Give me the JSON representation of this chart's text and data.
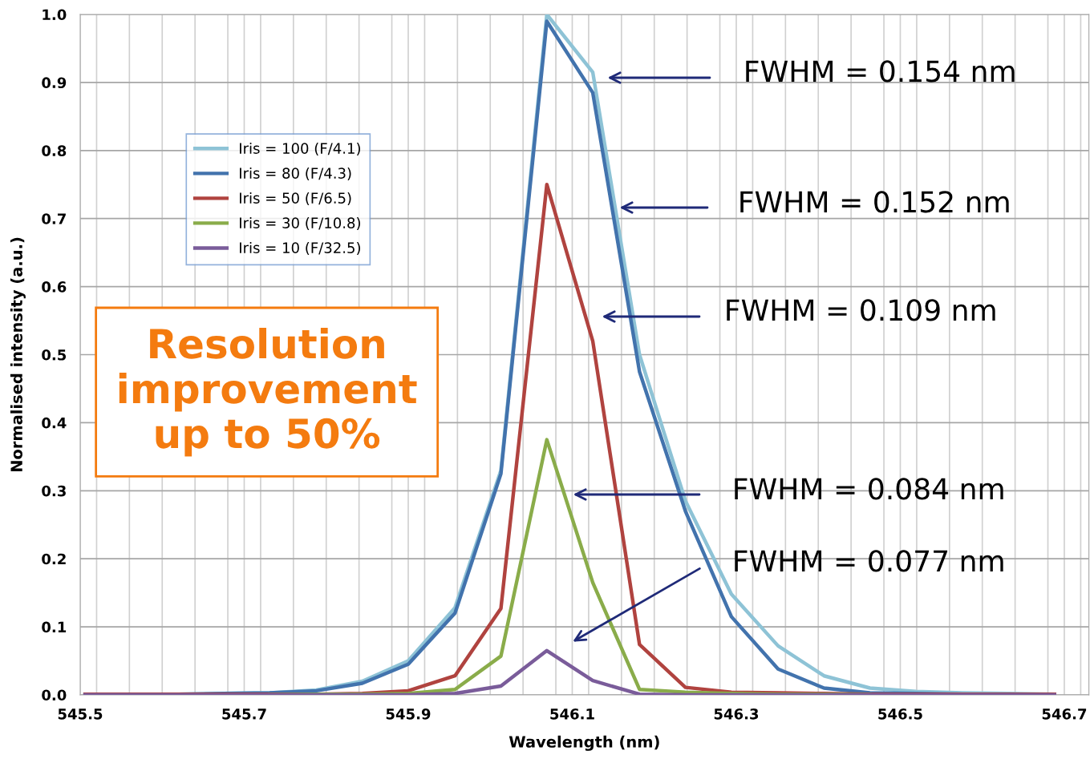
{
  "chart_data": {
    "type": "line",
    "xlabel": "Wavelength (nm)",
    "ylabel": "Normalised intensity (a.u.)",
    "x": [
      545.506,
      545.562,
      545.619,
      545.675,
      545.731,
      545.788,
      545.844,
      545.9,
      545.957,
      546.013,
      546.069,
      546.125,
      546.182,
      546.238,
      546.294,
      546.351,
      546.407,
      546.463,
      546.519,
      546.576,
      546.632,
      546.688
    ],
    "series": [
      {
        "name": "Iris = 100 (F/4.1)",
        "color": "#8ec3d6",
        "values": [
          0.001,
          0.001,
          0.001,
          0.002,
          0.003,
          0.007,
          0.02,
          0.05,
          0.128,
          0.33,
          1.0,
          0.915,
          0.5,
          0.285,
          0.148,
          0.072,
          0.028,
          0.01,
          0.005,
          0.003,
          0.002,
          0.001
        ]
      },
      {
        "name": "Iris = 80 (F/4.3)",
        "color": "#4273ad",
        "values": [
          0.001,
          0.001,
          0.001,
          0.002,
          0.003,
          0.006,
          0.017,
          0.045,
          0.12,
          0.325,
          0.99,
          0.885,
          0.475,
          0.27,
          0.115,
          0.038,
          0.01,
          0.003,
          0.002,
          0.001,
          0.001,
          0.001
        ]
      },
      {
        "name": "Iris = 50 (F/6.5)",
        "color": "#b0433f",
        "values": [
          0.001,
          0.001,
          0.001,
          0.001,
          0.001,
          0.001,
          0.002,
          0.006,
          0.028,
          0.127,
          0.75,
          0.52,
          0.074,
          0.011,
          0.004,
          0.003,
          0.002,
          0.001,
          0.001,
          0.001,
          0.001,
          0.001
        ]
      },
      {
        "name": "Iris = 30 (F/10.8)",
        "color": "#8aac4a",
        "values": [
          null,
          null,
          null,
          null,
          0.0,
          0.001,
          0.001,
          0.002,
          0.008,
          0.057,
          0.375,
          0.165,
          0.008,
          0.004,
          0.002,
          0.001,
          0.001,
          0.0,
          null,
          null,
          null,
          null
        ]
      },
      {
        "name": "Iris = 10 (F/32.5)",
        "color": "#7a5c9a",
        "values": [
          0.0,
          0.0,
          0.0,
          0.0,
          0.0,
          0.0,
          0.0,
          0.0,
          0.002,
          0.013,
          0.065,
          0.021,
          0.001,
          0.0,
          0.0,
          0.0,
          0.0,
          0.0,
          0.0,
          0.0,
          0.0,
          0.0
        ]
      }
    ],
    "xlim": [
      545.5,
      546.73
    ],
    "xticks": [
      545.5,
      545.7,
      545.9,
      546.1,
      546.3,
      546.5,
      546.7
    ],
    "ylim": [
      0,
      1.0
    ],
    "yticks": [
      {
        "value": 0,
        "label": "0.0"
      },
      0.1,
      0.2,
      0.3,
      0.4,
      0.5,
      0.6,
      0.7,
      0.8,
      0.9,
      {
        "value": 1.0,
        "label": "1.0"
      }
    ],
    "grid": true,
    "legend": "top left",
    "marker": "none",
    "line_style": "solid",
    "annotations": [
      "FWHM = 0.154 nm",
      "FWHM = 0.152 nm",
      "FWHM = 0.109 nm",
      "FWHM = 0.084 nm",
      "FWHM = 0.077 nm",
      "Resolution\nimprovement\nup to 50%"
    ]
  }
}
